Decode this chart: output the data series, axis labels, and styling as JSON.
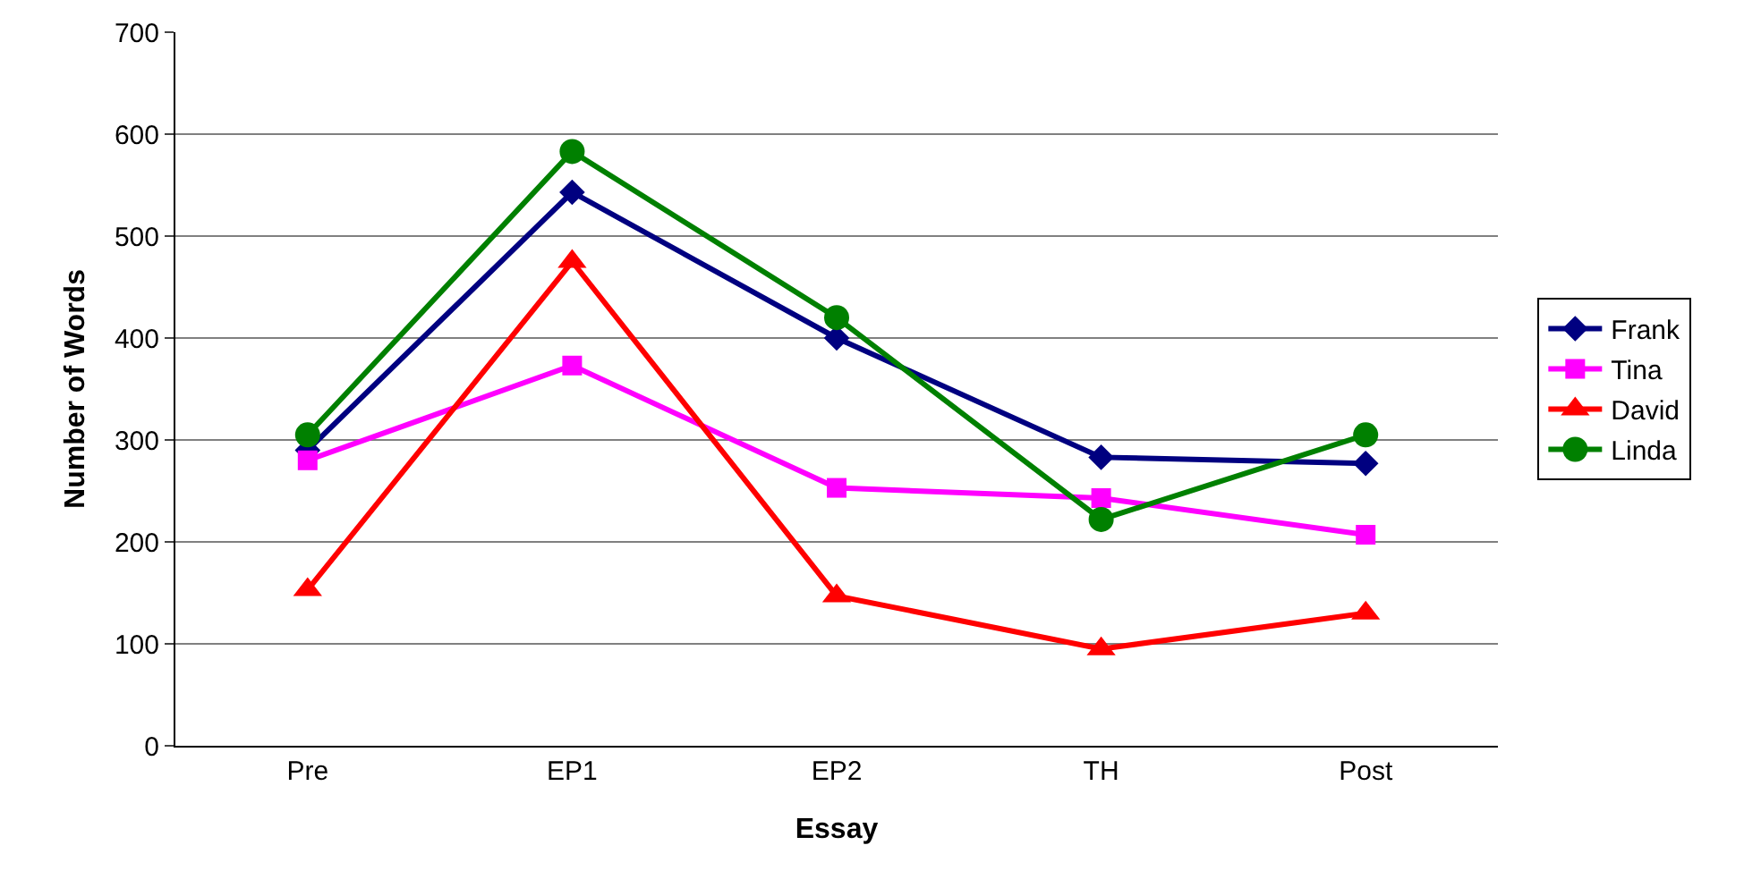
{
  "chart_data": {
    "type": "line",
    "xlabel": "Essay",
    "ylabel": "Number of Words",
    "categories": [
      "Pre",
      "EP1",
      "EP2",
      "TH",
      "Post"
    ],
    "series": [
      {
        "name": "Frank",
        "color": "#000080",
        "marker": "diamond",
        "values": [
          290,
          543,
          400,
          283,
          277
        ]
      },
      {
        "name": "Tina",
        "color": "#ff00ff",
        "marker": "square",
        "values": [
          280,
          373,
          253,
          243,
          207
        ]
      },
      {
        "name": "David",
        "color": "#ff0000",
        "marker": "triangle",
        "values": [
          153,
          475,
          147,
          95,
          130
        ]
      },
      {
        "name": "Linda",
        "color": "#008000",
        "marker": "circle",
        "values": [
          305,
          583,
          420,
          222,
          305
        ]
      }
    ],
    "ylim": [
      0,
      700
    ],
    "yticks": [
      0,
      100,
      200,
      300,
      400,
      500,
      600,
      700
    ],
    "grid": "y",
    "legend": "right"
  }
}
